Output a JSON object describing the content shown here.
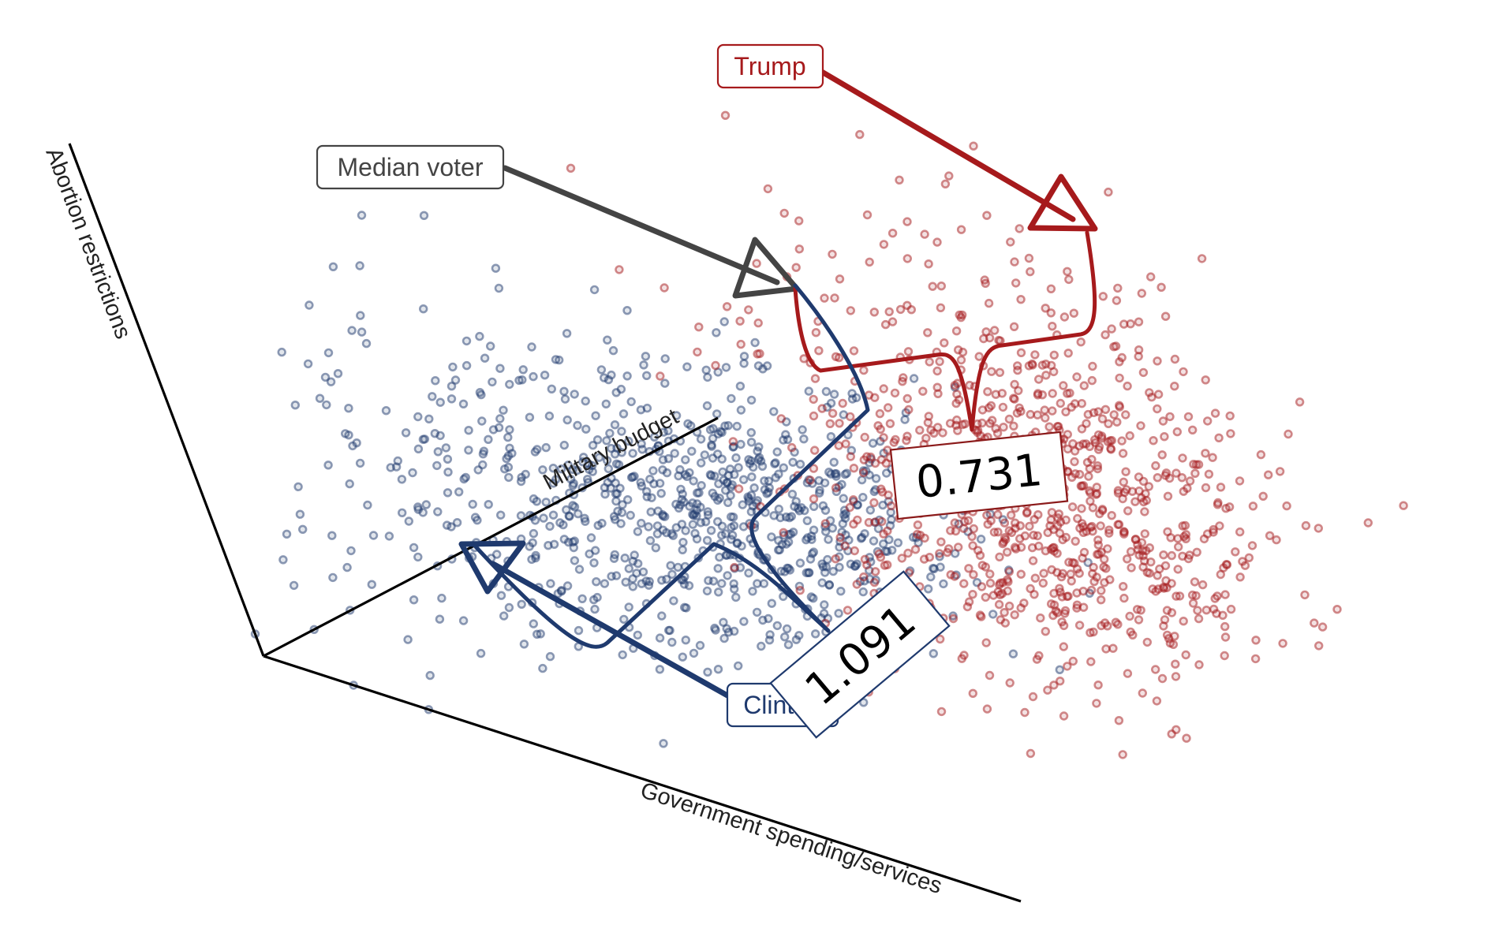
{
  "chart_data": {
    "type": "scatter",
    "projection": "3d-oblique",
    "axes": {
      "x": {
        "label": "Government spending/services"
      },
      "y": {
        "label": "Military budget"
      },
      "z": {
        "label": "Abortion restrictions"
      }
    },
    "grid": false,
    "legend": "none",
    "colors": {
      "blue": "#1f3a6e",
      "red": "#a61a1c",
      "gray": "#444444"
    },
    "point_groups": [
      {
        "color": "blue",
        "n": 720,
        "center": [
          0.32,
          0.56,
          0.17
        ],
        "spread": [
          0.14,
          0.15,
          0.11
        ]
      },
      {
        "color": "blue",
        "n": 170,
        "center": [
          0.15,
          0.3,
          0.25
        ],
        "spread": [
          0.13,
          0.15,
          0.17
        ]
      },
      {
        "color": "red",
        "n": 800,
        "center": [
          0.8,
          0.55,
          0.4
        ],
        "spread": [
          0.12,
          0.15,
          0.14
        ]
      },
      {
        "color": "red",
        "n": 160,
        "center": [
          0.6,
          0.8,
          0.52
        ],
        "spread": [
          0.15,
          0.12,
          0.14
        ]
      }
    ],
    "annotations": [
      {
        "label": "Trump",
        "color": "red",
        "target": "trump"
      },
      {
        "label": "Median voter",
        "color": "gray",
        "target": "median"
      },
      {
        "label": "Clinton",
        "color": "blue",
        "target": "clinton"
      }
    ],
    "distances": [
      {
        "label": "0.731",
        "from": "median",
        "to": "trump",
        "color": "red"
      },
      {
        "label": "1.091",
        "from": "median",
        "to": "clinton",
        "color": "blue"
      }
    ]
  }
}
